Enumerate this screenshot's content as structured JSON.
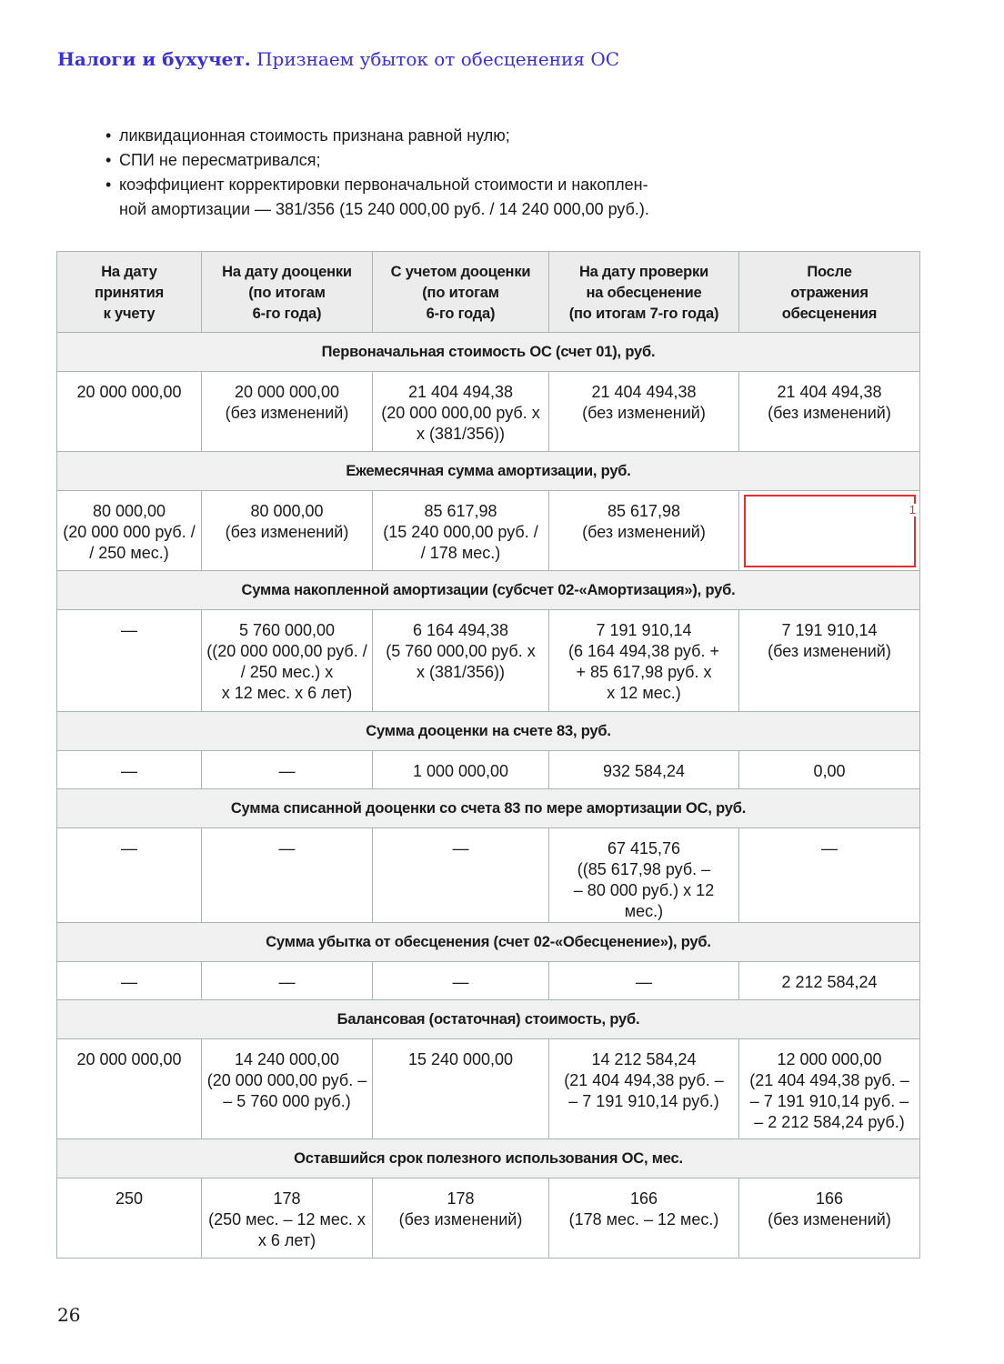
{
  "running_head": {
    "section": "Налоги и бухучет.",
    "title": "Признаем убыток от обесценения ОС"
  },
  "bullets": [
    "ликвидационная стоимость признана равной нулю;",
    "СПИ не пересматривался;",
    "коэффициент корректировки первоначальной стоимости и накоплен-\nной амортизации — 381/356 (15 240 000,00 руб. / 14 240 000,00 руб.)."
  ],
  "table": {
    "headers": [
      "На дату\nпринятия\nк учету",
      "На дату дооценки\n(по итогам\n6-го года)",
      "С учетом дооценки\n(по итогам\n6-го года)",
      "На дату проверки\nна обесценение\n(по итогам 7-го года)",
      "После\nотражения\nобесценения"
    ],
    "sections": [
      {
        "title": "Первоначальная стоимость ОС (счет 01), руб.",
        "cells": [
          "20 000 000,00",
          "20 000 000,00\n(без изменений)",
          "21 404 494,38\n(20 000 000,00 руб. x\nx (381/356))",
          "21 404 494,38\n(без изменений)",
          "21 404 494,38\n(без изменений)"
        ],
        "h": 76
      },
      {
        "title": "Ежемесячная сумма амортизации, руб.",
        "cells": [
          "80 000,00\n(20 000 000 руб. /\n/ 250 мес.)",
          "80 000,00\n(без изменений)",
          "85 617,98\n(15 240 000,00 руб. /\n/ 178 мес.)",
          "85 617,98\n(без изменений)",
          "1"
        ],
        "h": 76
      },
      {
        "title": "Сумма накопленной амортизации (субсчет 02-«Амортизация»), руб.",
        "cells": [
          "—",
          "5 760 000,00\n((20 000 000,00 руб. /\n/ 250 мес.) x\nx 12 мес. x 6 лет)",
          "6 164 494,38\n(5 760 000,00 руб. x\nx (381/356))",
          "7 191 910,14\n(6 164 494,38 руб. +\n+ 85 617,98 руб. x\nx 12 мес.)",
          "7 191 910,14\n(без изменений)"
        ],
        "h": 100
      },
      {
        "title": "Сумма дооценки на счете 83, руб.",
        "cells": [
          "—",
          "—",
          "1 000 000,00",
          "932 584,24",
          "0,00"
        ],
        "h": 30
      },
      {
        "title": "Сумма списанной дооценки со счета 83 по мере амортизации ОС, руб.",
        "cells": [
          "—",
          "—",
          "—",
          "67 415,76\n((85 617,98 руб. –\n– 80 000 руб.) x 12 мес.)",
          "—"
        ],
        "h": 76
      },
      {
        "title": "Сумма убытка от обесценения (счет 02-«Обесценение»), руб.",
        "cells": [
          "—",
          "—",
          "—",
          "—",
          "2 212 584,24"
        ],
        "h": 30
      },
      {
        "title": "Балансовая (остаточная) стоимость, руб.",
        "cells": [
          "20 000 000,00",
          "14 240 000,00\n(20 000 000,00 руб. –\n– 5 760 000 руб.)",
          "15 240 000,00",
          "14 212 584,24\n(21 404 494,38 руб. –\n– 7 191 910,14 руб.)",
          "12 000 000,00\n(21 404 494,38 руб. –\n– 7 191 910,14 руб. –\n– 2 212 584,24 руб.)"
        ],
        "h": 98
      },
      {
        "title": "Оставшийся срок полезного использования ОС, мес.",
        "cells": [
          "250",
          "178\n(250 мес. – 12 мес. x\nx 6 лет)",
          "178\n(без изменений)",
          "166\n(178 мес. – 12 мес.)",
          "166\n(без изменений)"
        ],
        "h": 76
      }
    ]
  },
  "page_number": "26",
  "colors": {
    "accent": "#3a2fe0",
    "highlight_box": "#ef2a2a"
  }
}
